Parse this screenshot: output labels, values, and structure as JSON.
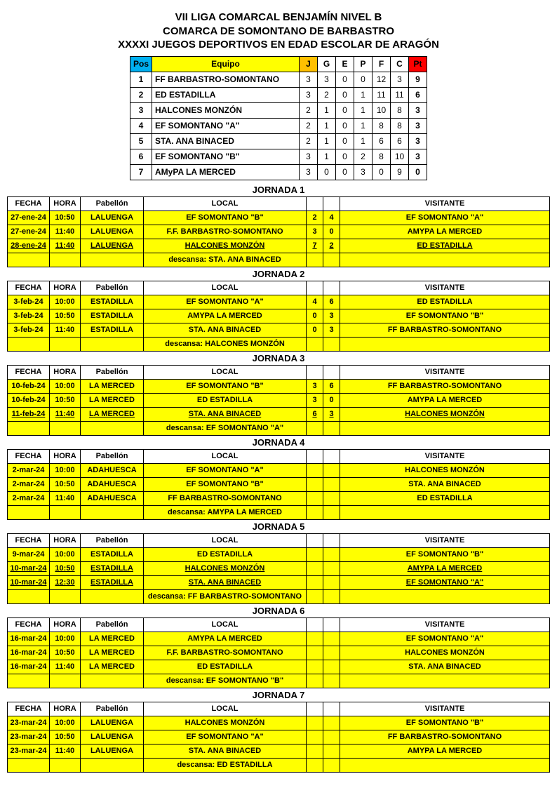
{
  "titles": [
    "VII  LIGA COMARCAL BENJAMÍN NIVEL B",
    "COMARCA DE SOMONTANO DE BARBASTRO",
    "XXXXI JUEGOS DEPORTIVOS EN EDAD ESCOLAR DE ARAGÓN"
  ],
  "colors": {
    "yellow": "#ffff00",
    "blue": "#00b0f0",
    "orange": "#ffc000",
    "red": "#ff0000",
    "border": "#000000"
  },
  "standings": {
    "headers": {
      "pos": "Pos",
      "equipo": "Equipo",
      "j": "J",
      "g": "G",
      "e": "E",
      "p": "P",
      "f": "F",
      "c": "C",
      "pt": "Pt"
    },
    "rows": [
      {
        "pos": "1",
        "team": "FF BARBASTRO-SOMONTANO",
        "j": "3",
        "g": "3",
        "e": "0",
        "p": "0",
        "f": "12",
        "c": "3",
        "pt": "9"
      },
      {
        "pos": "2",
        "team": "ED ESTADILLA",
        "j": "3",
        "g": "2",
        "e": "0",
        "p": "1",
        "f": "11",
        "c": "11",
        "pt": "6"
      },
      {
        "pos": "3",
        "team": "HALCONES MONZÓN",
        "j": "2",
        "g": "1",
        "e": "0",
        "p": "1",
        "f": "10",
        "c": "8",
        "pt": "3"
      },
      {
        "pos": "4",
        "team": "EF SOMONTANO \"A\"",
        "j": "2",
        "g": "1",
        "e": "0",
        "p": "1",
        "f": "8",
        "c": "8",
        "pt": "3"
      },
      {
        "pos": "5",
        "team": "STA. ANA BINACED",
        "j": "2",
        "g": "1",
        "e": "0",
        "p": "1",
        "f": "6",
        "c": "6",
        "pt": "3"
      },
      {
        "pos": "6",
        "team": "EF SOMONTANO \"B\"",
        "j": "3",
        "g": "1",
        "e": "0",
        "p": "2",
        "f": "8",
        "c": "10",
        "pt": "3"
      },
      {
        "pos": "7",
        "team": "AMyPA LA MERCED",
        "j": "3",
        "g": "0",
        "e": "0",
        "p": "3",
        "f": "0",
        "c": "9",
        "pt": "0"
      }
    ]
  },
  "sched_headers": {
    "fecha": "FECHA",
    "hora": "HORA",
    "pab": "Pabellón",
    "local": "LOCAL",
    "visit": "VISITANTE"
  },
  "jornadas": [
    {
      "title": "JORNADA  1",
      "matches": [
        {
          "fecha": "27-ene-24",
          "hora": "10:50",
          "pab": "LALUENGA",
          "local": "EF SOMONTANO \"B\"",
          "s1": "2",
          "s2": "4",
          "visit": "EF SOMONTANO \"A\"",
          "ul": false
        },
        {
          "fecha": "27-ene-24",
          "hora": "11:40",
          "pab": "LALUENGA",
          "local": "F.F. BARBASTRO-SOMONTANO",
          "s1": "3",
          "s2": "0",
          "visit": "AMYPA LA MERCED",
          "ul": false
        },
        {
          "fecha": "28-ene-24",
          "hora": "11:40",
          "pab": "LALUENGA",
          "local": "HALCONES MONZÓN",
          "s1": "7",
          "s2": "2",
          "visit": "ED ESTADILLA",
          "ul": true
        }
      ],
      "rest": "descansa: STA. ANA BINACED"
    },
    {
      "title": "JORNADA  2",
      "matches": [
        {
          "fecha": "3-feb-24",
          "hora": "10:00",
          "pab": "ESTADILLA",
          "local": "EF SOMONTANO \"A\"",
          "s1": "4",
          "s2": "6",
          "visit": "ED ESTADILLA",
          "ul": false
        },
        {
          "fecha": "3-feb-24",
          "hora": "10:50",
          "pab": "ESTADILLA",
          "local": "AMYPA LA MERCED",
          "s1": "0",
          "s2": "3",
          "visit": "EF SOMONTANO \"B\"",
          "ul": false
        },
        {
          "fecha": "3-feb-24",
          "hora": "11:40",
          "pab": "ESTADILLA",
          "local": "STA. ANA BINACED",
          "s1": "0",
          "s2": "3",
          "visit": "FF BARBASTRO-SOMONTANO",
          "ul": false
        }
      ],
      "rest": "descansa: HALCONES MONZÓN"
    },
    {
      "title": "JORNADA  3",
      "matches": [
        {
          "fecha": "10-feb-24",
          "hora": "10:00",
          "pab": "LA MERCED",
          "local": "EF SOMONTANO \"B\"",
          "s1": "3",
          "s2": "6",
          "visit": "FF BARBASTRO-SOMONTANO",
          "ul": false
        },
        {
          "fecha": "10-feb-24",
          "hora": "10:50",
          "pab": "LA MERCED",
          "local": "ED ESTADILLA",
          "s1": "3",
          "s2": "0",
          "visit": "AMYPA LA MERCED",
          "ul": false
        },
        {
          "fecha": "11-feb-24",
          "hora": "11:40",
          "pab": "LA MERCED",
          "local": "STA. ANA BINACED",
          "s1": "6",
          "s2": "3",
          "visit": "HALCONES MONZÓN",
          "ul": true
        }
      ],
      "rest": "descansa: EF SOMONTANO \"A\""
    },
    {
      "title": "JORNADA 4",
      "matches": [
        {
          "fecha": "2-mar-24",
          "hora": "10:00",
          "pab": "ADAHUESCA",
          "local": "EF SOMONTANO \"A\"",
          "s1": "",
          "s2": "",
          "visit": "HALCONES MONZÓN",
          "ul": false
        },
        {
          "fecha": "2-mar-24",
          "hora": "10:50",
          "pab": "ADAHUESCA",
          "local": "EF SOMONTANO \"B\"",
          "s1": "",
          "s2": "",
          "visit": "STA. ANA BINACED",
          "ul": false
        },
        {
          "fecha": "2-mar-24",
          "hora": "11:40",
          "pab": "ADAHUESCA",
          "local": "FF BARBASTRO-SOMONTANO",
          "s1": "",
          "s2": "",
          "visit": "ED ESTADILLA",
          "ul": false
        }
      ],
      "rest": "descansa: AMYPA LA MERCED"
    },
    {
      "title": "JORNADA 5",
      "matches": [
        {
          "fecha": "9-mar-24",
          "hora": "10:00",
          "pab": "ESTADILLA",
          "local": "ED ESTADILLA",
          "s1": "",
          "s2": "",
          "visit": "EF SOMONTANO \"B\"",
          "ul": false
        },
        {
          "fecha": "10-mar-24",
          "hora": "10:50",
          "pab": "ESTADILLA",
          "local": "HALCONES MONZÓN",
          "s1": "",
          "s2": "",
          "visit": "AMYPA LA MERCED",
          "ul": true
        },
        {
          "fecha": "10-mar-24",
          "hora": "12:30",
          "pab": "ESTADILLA",
          "local": "STA. ANA BINACED",
          "s1": "",
          "s2": "",
          "visit": "EF SOMONTANO \"A\"",
          "ul": true
        }
      ],
      "rest": "descansa: FF BARBASTRO-SOMONTANO"
    },
    {
      "title": "JORNADA 6",
      "matches": [
        {
          "fecha": "16-mar-24",
          "hora": "10:00",
          "pab": "LA MERCED",
          "local": "AMYPA LA MERCED",
          "s1": "",
          "s2": "",
          "visit": "EF SOMONTANO \"A\"",
          "ul": false
        },
        {
          "fecha": "16-mar-24",
          "hora": "10:50",
          "pab": "LA MERCED",
          "local": "F.F. BARBASTRO-SOMONTANO",
          "s1": "",
          "s2": "",
          "visit": "HALCONES MONZÓN",
          "ul": false
        },
        {
          "fecha": "16-mar-24",
          "hora": "11:40",
          "pab": "LA MERCED",
          "local": "ED ESTADILLA",
          "s1": "",
          "s2": "",
          "visit": "STA. ANA BINACED",
          "ul": false
        }
      ],
      "rest": "descansa: EF SOMONTANO \"B\""
    },
    {
      "title": "JORNADA 7",
      "matches": [
        {
          "fecha": "23-mar-24",
          "hora": "10:00",
          "pab": "LALUENGA",
          "local": "HALCONES MONZÓN",
          "s1": "",
          "s2": "",
          "visit": "EF SOMONTANO \"B\"",
          "ul": false
        },
        {
          "fecha": "23-mar-24",
          "hora": "10:50",
          "pab": "LALUENGA",
          "local": "EF SOMONTANO \"A\"",
          "s1": "",
          "s2": "",
          "visit": "FF BARBASTRO-SOMONTANO",
          "ul": false
        },
        {
          "fecha": "23-mar-24",
          "hora": "11:40",
          "pab": "LALUENGA",
          "local": "STA. ANA BINACED",
          "s1": "",
          "s2": "",
          "visit": "AMYPA LA MERCED",
          "ul": false
        }
      ],
      "rest": "descansa: ED ESTADILLA"
    }
  ]
}
